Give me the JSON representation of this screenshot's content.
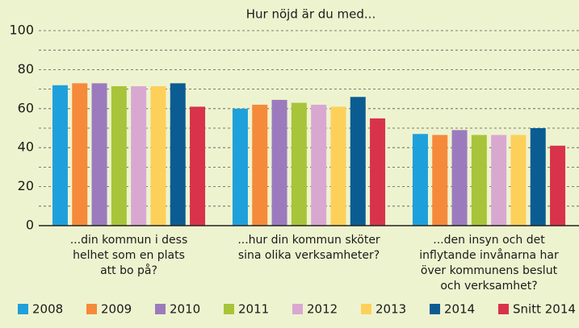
{
  "chart_data": {
    "type": "bar",
    "title": "Hur nöjd är du med...",
    "categories": [
      [
        "...din kommun i dess",
        "helhet som en plats",
        "att bo på?"
      ],
      [
        "...hur din kommun sköter",
        "sina olika verksamheter?"
      ],
      [
        "...den insyn och det",
        "inflytande invånarna har",
        "över kommunens beslut",
        "och verksamhet?"
      ]
    ],
    "series": [
      {
        "name": "2008",
        "color": "#1ea0dc",
        "values": [
          72,
          60,
          47
        ]
      },
      {
        "name": "2009",
        "color": "#f58a3a",
        "values": [
          73,
          62,
          46.5
        ]
      },
      {
        "name": "2010",
        "color": "#9b7bbd",
        "values": [
          73,
          64.5,
          49
        ]
      },
      {
        "name": "2011",
        "color": "#a8c43a",
        "values": [
          71.5,
          63,
          46.5
        ]
      },
      {
        "name": "2012",
        "color": "#d9a8d1",
        "values": [
          71.5,
          62,
          46.5
        ]
      },
      {
        "name": "2013",
        "color": "#fdd05a",
        "values": [
          71.5,
          61,
          46.5
        ]
      },
      {
        "name": "2014",
        "color": "#0b5c93",
        "values": [
          73,
          66,
          50
        ]
      },
      {
        "name": "Snitt 2014",
        "color": "#d8334a",
        "values": [
          61,
          55,
          41
        ]
      }
    ],
    "ylim": [
      0,
      100
    ],
    "yticks": [
      0,
      20,
      40,
      60,
      80,
      100
    ],
    "grid": true,
    "legend": "bottom"
  }
}
